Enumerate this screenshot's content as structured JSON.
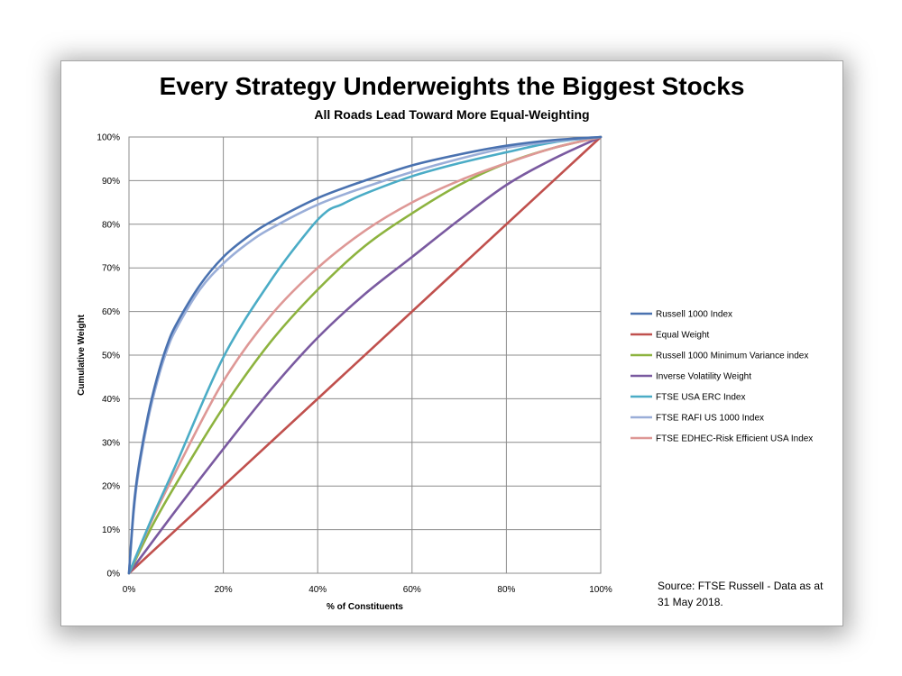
{
  "chart_data": {
    "type": "line",
    "title": "Every Strategy Underweights the Biggest Stocks",
    "subtitle": "All Roads Lead Toward More Equal-Weighting",
    "xlabel": "% of Constituents",
    "ylabel": "Cumulative Weight",
    "xlim": [
      0,
      100
    ],
    "ylim": [
      0,
      100
    ],
    "x_ticks": [
      "0%",
      "20%",
      "40%",
      "60%",
      "80%",
      "100%"
    ],
    "y_ticks": [
      "0%",
      "10%",
      "20%",
      "30%",
      "40%",
      "50%",
      "60%",
      "70%",
      "80%",
      "90%",
      "100%"
    ],
    "grid": true,
    "legend_position": "right",
    "source": "Source: FTSE Russell - Data as at 31 May 2018.",
    "series": [
      {
        "name": "Russell 1000 Index",
        "color": "#4a72b0",
        "points": [
          [
            0,
            0
          ],
          [
            1,
            15
          ],
          [
            2,
            24
          ],
          [
            4,
            36
          ],
          [
            6,
            45
          ],
          [
            8,
            52
          ],
          [
            10,
            57
          ],
          [
            15,
            66
          ],
          [
            20,
            72.5
          ],
          [
            25,
            77
          ],
          [
            30,
            80.5
          ],
          [
            40,
            86
          ],
          [
            50,
            90
          ],
          [
            60,
            93.5
          ],
          [
            70,
            96
          ],
          [
            80,
            98
          ],
          [
            90,
            99.3
          ],
          [
            100,
            100
          ]
        ]
      },
      {
        "name": "Equal Weight",
        "color": "#c0504d",
        "points": [
          [
            0,
            0
          ],
          [
            100,
            100
          ]
        ]
      },
      {
        "name": "Russell 1000 Minimum Variance index",
        "color": "#8db33f",
        "points": [
          [
            0,
            0
          ],
          [
            5,
            11
          ],
          [
            10,
            20.5
          ],
          [
            20,
            38
          ],
          [
            30,
            53
          ],
          [
            40,
            65
          ],
          [
            50,
            75
          ],
          [
            60,
            82.5
          ],
          [
            70,
            89
          ],
          [
            80,
            94
          ],
          [
            90,
            97.5
          ],
          [
            100,
            100
          ]
        ]
      },
      {
        "name": "Inverse Volatility Weight",
        "color": "#7a5aa0",
        "points": [
          [
            0,
            0
          ],
          [
            10,
            14.5
          ],
          [
            20,
            28.5
          ],
          [
            30,
            42
          ],
          [
            40,
            54
          ],
          [
            50,
            64
          ],
          [
            60,
            72.5
          ],
          [
            70,
            81
          ],
          [
            80,
            89
          ],
          [
            90,
            95
          ],
          [
            100,
            100
          ]
        ]
      },
      {
        "name": "FTSE USA ERC Index",
        "color": "#4bacc6",
        "points": [
          [
            0,
            0
          ],
          [
            5,
            13
          ],
          [
            10,
            25
          ],
          [
            20,
            49.5
          ],
          [
            30,
            67
          ],
          [
            38,
            78.5
          ],
          [
            42,
            83
          ],
          [
            45,
            84.5
          ],
          [
            50,
            87
          ],
          [
            60,
            91
          ],
          [
            70,
            94
          ],
          [
            80,
            96.5
          ],
          [
            90,
            98.8
          ],
          [
            100,
            100
          ]
        ]
      },
      {
        "name": "FTSE RAFI US 1000 Index",
        "color": "#9aaed8",
        "points": [
          [
            0,
            0
          ],
          [
            1,
            14
          ],
          [
            2,
            23
          ],
          [
            4,
            35
          ],
          [
            6,
            44
          ],
          [
            8,
            51
          ],
          [
            10,
            56
          ],
          [
            15,
            65
          ],
          [
            20,
            71
          ],
          [
            25,
            75.5
          ],
          [
            30,
            79
          ],
          [
            40,
            84.5
          ],
          [
            50,
            88.5
          ],
          [
            60,
            92
          ],
          [
            70,
            95
          ],
          [
            80,
            97.5
          ],
          [
            90,
            99
          ],
          [
            100,
            100
          ]
        ]
      },
      {
        "name": "FTSE EDHEC-Risk Efficient USA Index",
        "color": "#de9896",
        "points": [
          [
            0,
            0
          ],
          [
            5,
            12.5
          ],
          [
            10,
            23.5
          ],
          [
            20,
            44
          ],
          [
            30,
            59
          ],
          [
            40,
            70
          ],
          [
            50,
            78.5
          ],
          [
            60,
            85
          ],
          [
            70,
            90
          ],
          [
            80,
            94
          ],
          [
            90,
            97.5
          ],
          [
            100,
            100
          ]
        ]
      }
    ]
  }
}
